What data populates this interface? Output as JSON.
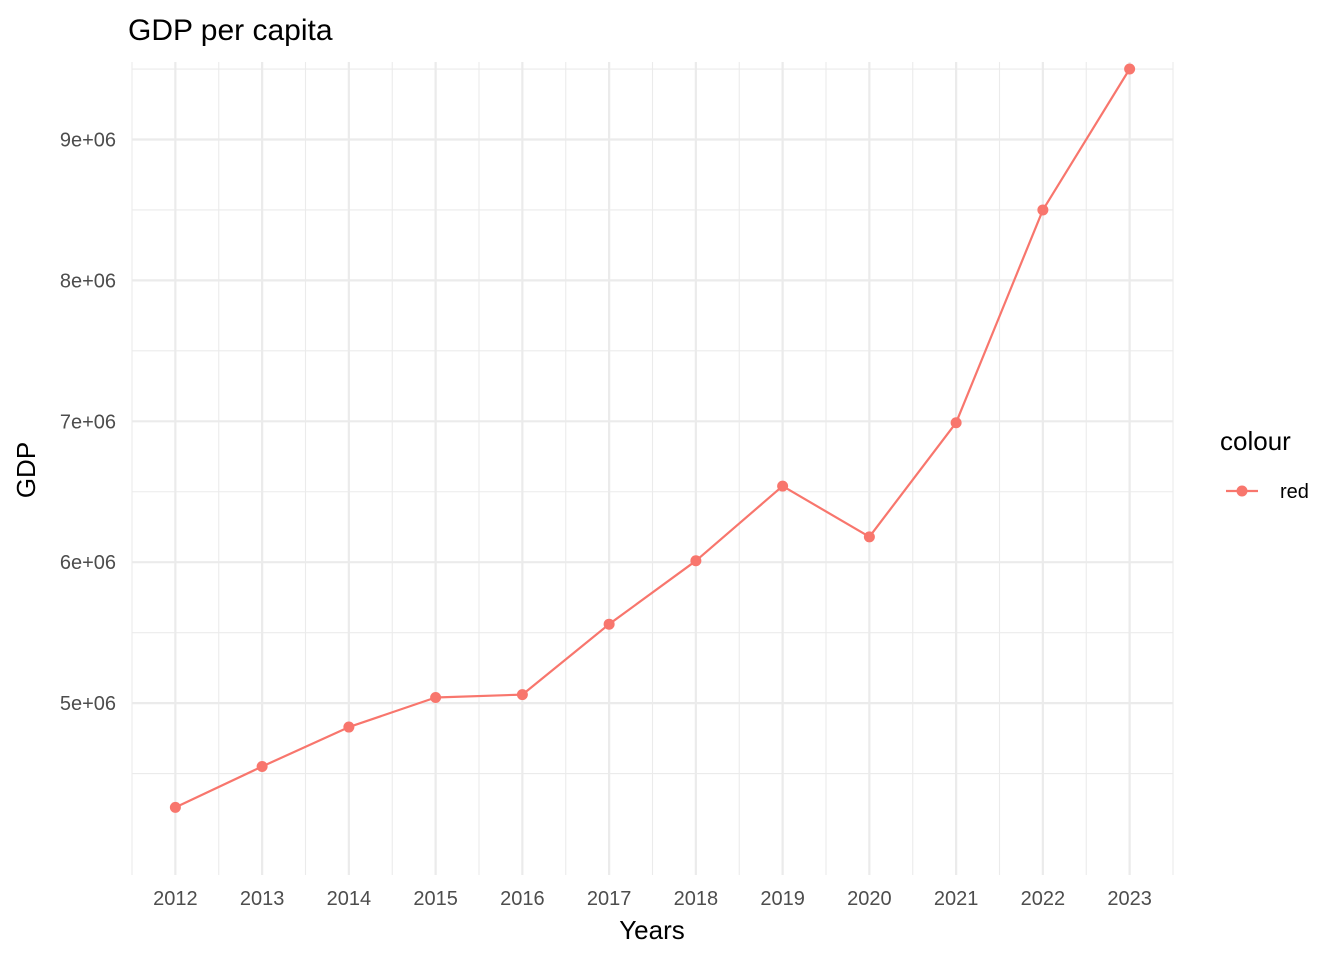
{
  "colors": {
    "series": "#F8766D",
    "grid": "#EBEBEB",
    "tick_text": "#4D4D4D",
    "text": "#000000",
    "background": "#FFFFFF"
  },
  "chart_data": {
    "type": "line",
    "title": "GDP per capita",
    "xlabel": "Years",
    "ylabel": "GDP",
    "x": [
      2012,
      2013,
      2014,
      2015,
      2016,
      2017,
      2018,
      2019,
      2020,
      2021,
      2022,
      2023
    ],
    "x_tick_labels": [
      "2012",
      "2013",
      "2014",
      "2015",
      "2016",
      "2017",
      "2018",
      "2019",
      "2020",
      "2021",
      "2022",
      "2023"
    ],
    "xlim": [
      2011.5,
      2023.5
    ],
    "y_ticks": [
      5000000,
      6000000,
      7000000,
      8000000,
      9000000
    ],
    "y_tick_labels": [
      "5e+06",
      "6e+06",
      "7e+06",
      "8e+06",
      "9e+06"
    ],
    "ylim": [
      3780000,
      9550000
    ],
    "grid": true,
    "series": [
      {
        "name": "red",
        "values": [
          4260000,
          4550000,
          4830000,
          5040000,
          5060000,
          5560000,
          6010000,
          6540000,
          6180000,
          6990000,
          8500000,
          9500000
        ]
      }
    ],
    "legend": {
      "title": "colour",
      "position": "right"
    }
  }
}
